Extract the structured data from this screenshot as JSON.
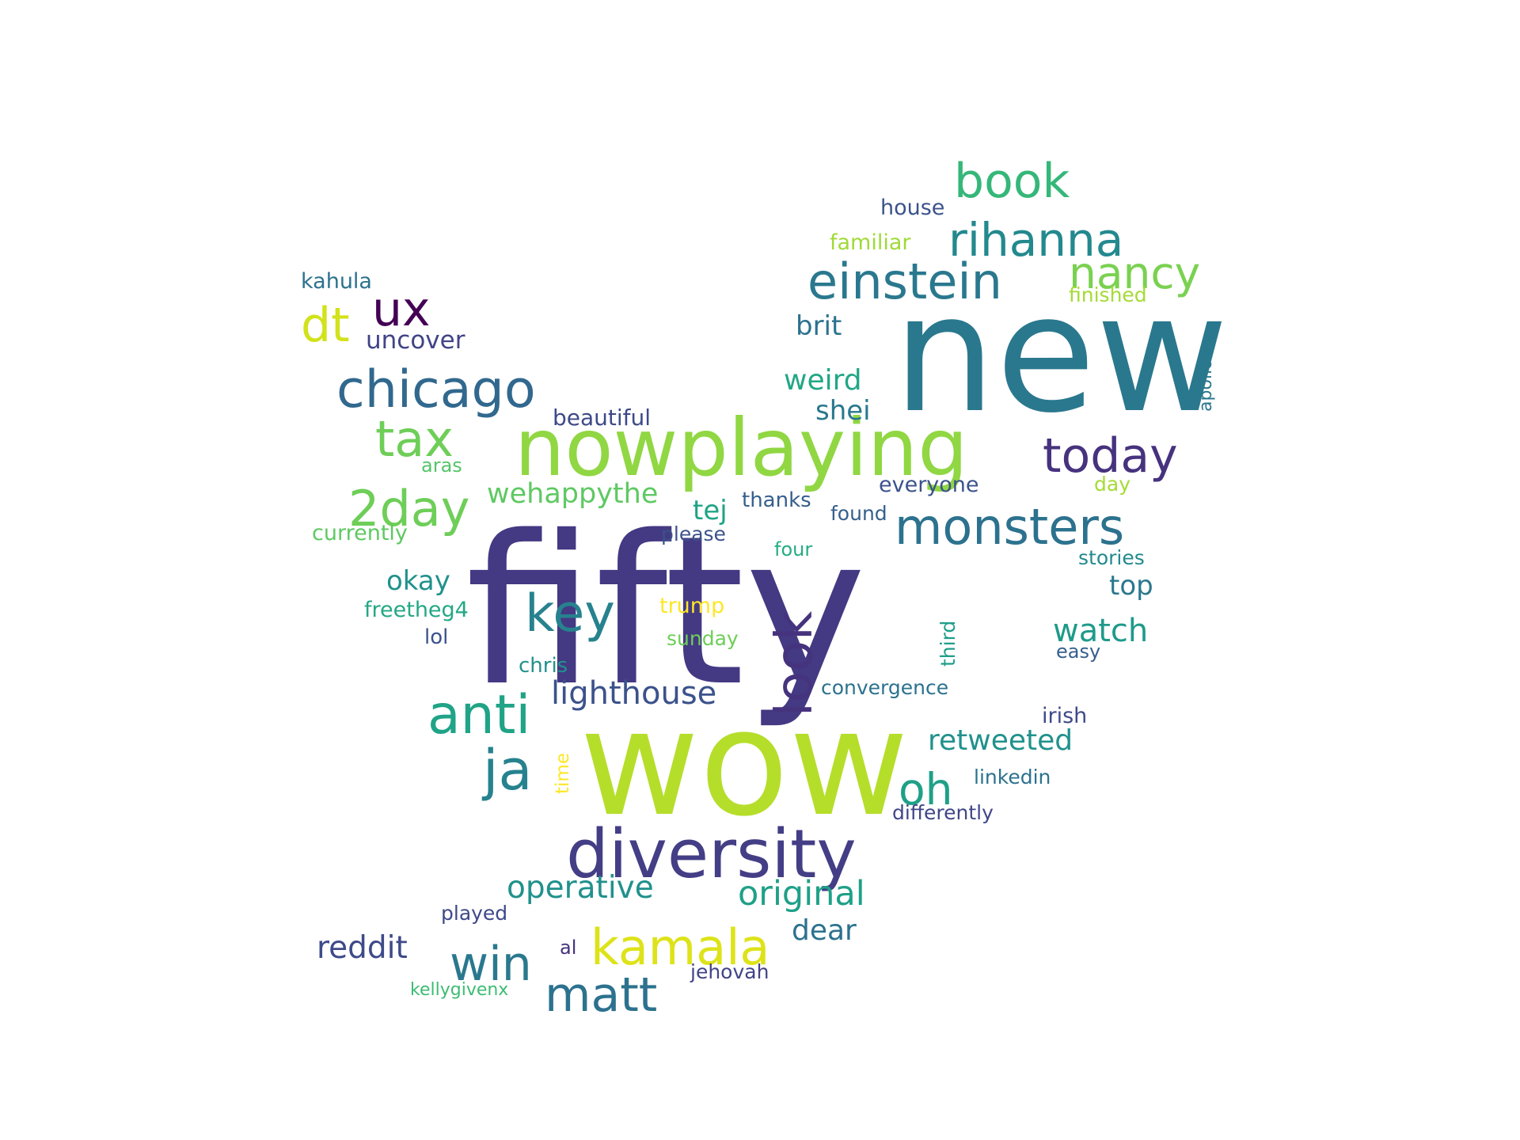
{
  "words": [
    {
      "text": "fifty",
      "color": "#443983"
    },
    {
      "text": "new",
      "color": "#2a788e"
    },
    {
      "text": "wow",
      "color": "#b5de2b"
    },
    {
      "text": "nowplaying",
      "color": "#90d743"
    },
    {
      "text": "diversity",
      "color": "#433e85"
    },
    {
      "text": "monsters",
      "color": "#2c728e"
    },
    {
      "text": "chicago",
      "color": "#31688e"
    },
    {
      "text": "einstein",
      "color": "#2a788e"
    },
    {
      "text": "rihanna",
      "color": "#23898e"
    },
    {
      "text": "book",
      "color": "#35b779"
    },
    {
      "text": "today",
      "color": "#46327e"
    },
    {
      "text": "kamala",
      "color": "#dde318"
    },
    {
      "text": "nancy",
      "color": "#7ad151"
    },
    {
      "text": "2day",
      "color": "#6ece58"
    },
    {
      "text": "tax",
      "color": "#6ece58"
    },
    {
      "text": "key",
      "color": "#26828e"
    },
    {
      "text": "look",
      "color": "#46337e"
    },
    {
      "text": "anti",
      "color": "#20a386"
    },
    {
      "text": "ja",
      "color": "#26828e"
    },
    {
      "text": "oh",
      "color": "#1fa088"
    },
    {
      "text": "win",
      "color": "#2a788e"
    },
    {
      "text": "matt",
      "color": "#2c728e"
    },
    {
      "text": "dt",
      "color": "#d2e21b"
    },
    {
      "text": "ux",
      "color": "#440154"
    },
    {
      "text": "lighthouse",
      "color": "#3b528b"
    },
    {
      "text": "original",
      "color": "#1fa088"
    },
    {
      "text": "operative",
      "color": "#21918c"
    },
    {
      "text": "reddit",
      "color": "#3e4a89"
    },
    {
      "text": "watch",
      "color": "#1f9a8a"
    },
    {
      "text": "retweeted",
      "color": "#21918c"
    },
    {
      "text": "dear",
      "color": "#2c728e"
    },
    {
      "text": "uncover",
      "color": "#414487"
    },
    {
      "text": "weird",
      "color": "#22a785"
    },
    {
      "text": "brit",
      "color": "#2c728e"
    },
    {
      "text": "shei",
      "color": "#2a788e"
    },
    {
      "text": "wehappythe",
      "color": "#5ec962"
    },
    {
      "text": "tej",
      "color": "#20a486"
    },
    {
      "text": "top",
      "color": "#2a788e"
    },
    {
      "text": "okay",
      "color": "#21918c"
    },
    {
      "text": "beautiful",
      "color": "#3e4989"
    },
    {
      "text": "house",
      "color": "#3b528b"
    },
    {
      "text": "familiar",
      "color": "#a0da39"
    },
    {
      "text": "finished",
      "color": "#a5db36"
    },
    {
      "text": "kahula",
      "color": "#2c728e"
    },
    {
      "text": "apollo",
      "color": "#2a788e"
    },
    {
      "text": "aras",
      "color": "#54c568"
    },
    {
      "text": "everyone",
      "color": "#3b528b"
    },
    {
      "text": "day",
      "color": "#a5db36"
    },
    {
      "text": "thanks",
      "color": "#355f8d"
    },
    {
      "text": "found",
      "color": "#355f8d"
    },
    {
      "text": "currently",
      "color": "#5ec962"
    },
    {
      "text": "please",
      "color": "#3b528b"
    },
    {
      "text": "four",
      "color": "#25ac82"
    },
    {
      "text": "stories",
      "color": "#238a8d"
    },
    {
      "text": "freetheg4",
      "color": "#22a884"
    },
    {
      "text": "trump",
      "color": "#fde725"
    },
    {
      "text": "lol",
      "color": "#3b528b"
    },
    {
      "text": "sunday",
      "color": "#6ece58"
    },
    {
      "text": "third",
      "color": "#1f9e89"
    },
    {
      "text": "easy",
      "color": "#355f8d"
    },
    {
      "text": "chris",
      "color": "#21918c"
    },
    {
      "text": "convergence",
      "color": "#2c728e"
    },
    {
      "text": "irish",
      "color": "#3e4a89"
    },
    {
      "text": "time",
      "color": "#fde725"
    },
    {
      "text": "linkedin",
      "color": "#2c728e"
    },
    {
      "text": "differently",
      "color": "#404688"
    },
    {
      "text": "played",
      "color": "#3e4989"
    },
    {
      "text": "al",
      "color": "#46327e"
    },
    {
      "text": "jehovah",
      "color": "#414487"
    },
    {
      "text": "kellygivenx",
      "color": "#3dbc74"
    }
  ]
}
